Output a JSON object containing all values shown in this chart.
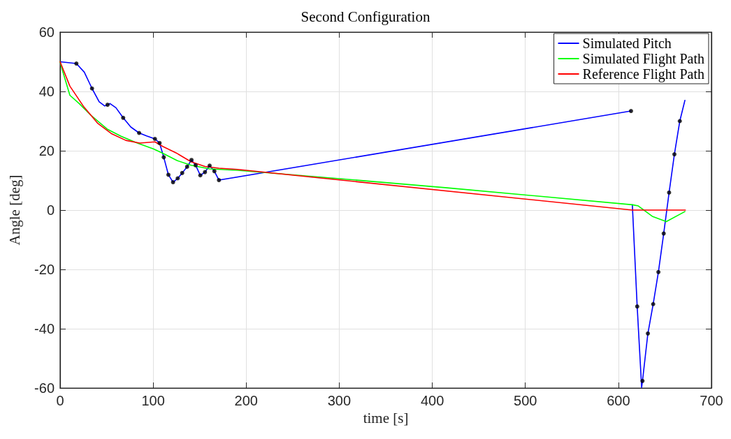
{
  "chart_data": {
    "type": "line",
    "title": "Second Configuration",
    "xlabel": "time [s]",
    "ylabel": "Angle [deg]",
    "xlim": [
      0,
      700
    ],
    "xticks": [
      0,
      100,
      200,
      300,
      400,
      500,
      600,
      700
    ],
    "ylim": [
      -60,
      60
    ],
    "yticks": [
      -60,
      -40,
      -20,
      0,
      20,
      40,
      60
    ],
    "grid": true,
    "legend": "top right",
    "series": [
      {
        "name": "Simulated Pitch",
        "color": "#0000ff",
        "x": [
          0,
          17.5,
          26,
          34.3,
          42,
          48,
          51,
          53.6,
          60,
          67.8,
          76,
          84.9,
          93,
          101.9,
          106.9,
          111.4,
          116.4,
          121.4,
          126.4,
          131.2,
          136.5,
          141.2,
          145.7,
          150.7,
          155.7,
          160.7,
          165.8,
          170.7,
          613.6,
          614.5,
          615,
          620.2,
          625,
          625.9,
          631.7,
          637.4,
          643,
          648.7,
          654.5,
          660.2,
          666,
          671.5
        ],
        "values": [
          50,
          49.4,
          46.5,
          41,
          36.5,
          35.1,
          35.5,
          35.9,
          34.5,
          31.1,
          28,
          26,
          25,
          24,
          22.6,
          17.8,
          11.9,
          9.4,
          10.7,
          12.5,
          14.6,
          16.9,
          15.1,
          11.7,
          12.8,
          15,
          13.1,
          10.1,
          33.4,
          null,
          1.8,
          -32.5,
          -59.8,
          -57.6,
          -41.6,
          -31.7,
          -20.9,
          -7.9,
          5.9,
          18.8,
          30,
          37
        ]
      },
      {
        "name": "Simulated Flight Path",
        "color": "#00ff00",
        "x": [
          0,
          3,
          10.5,
          20.5,
          33,
          50.6,
          65.6,
          83,
          100.6,
          110.6,
          125.7,
          140.7,
          160.7,
          190.8,
          300,
          416,
          615,
          621.4,
          636.4,
          651.5,
          671.5
        ],
        "values": [
          50,
          46.6,
          38.7,
          35.9,
          32,
          27.3,
          24.9,
          22.6,
          20.6,
          19.1,
          16.7,
          15.1,
          13.9,
          13.4,
          10.6,
          7.5,
          1.8,
          1.4,
          -2.1,
          -3.9,
          -0.5
        ]
      },
      {
        "name": "Reference Flight Path",
        "color": "#ff0000",
        "x": [
          0,
          10.5,
          25.5,
          40.6,
          55.6,
          70.6,
          85.6,
          101.9,
          110.6,
          125.7,
          140.7,
          155.7,
          170.7,
          190.8,
          615,
          672
        ],
        "values": [
          50,
          41.8,
          34.8,
          29.2,
          25.7,
          23.5,
          22.6,
          23,
          21.4,
          19.1,
          16.3,
          14.7,
          14.1,
          13.7,
          0,
          0
        ]
      },
      {
        "type": "scatter",
        "marker": "circle",
        "color": "#000000",
        "x": [
          17.5,
          34.3,
          51,
          67.8,
          84.9,
          101.9,
          106.9,
          111.4,
          116.4,
          121.4,
          126.4,
          131.2,
          136.5,
          141.2,
          145.7,
          150.7,
          155.7,
          160.7,
          165.8,
          170.7,
          613.6,
          620.2,
          625.9,
          631.7,
          637.4,
          643,
          648.7,
          654.5,
          660.2,
          666
        ],
        "values": [
          49.4,
          41,
          35.5,
          31.1,
          26,
          24,
          22.6,
          17.8,
          11.9,
          9.4,
          10.7,
          12.5,
          14.6,
          16.9,
          15.1,
          11.7,
          12.8,
          15,
          13.1,
          10.1,
          33.4,
          -32.5,
          -57.6,
          -41.6,
          -31.7,
          -20.9,
          -7.9,
          5.9,
          18.8,
          30
        ]
      }
    ]
  }
}
